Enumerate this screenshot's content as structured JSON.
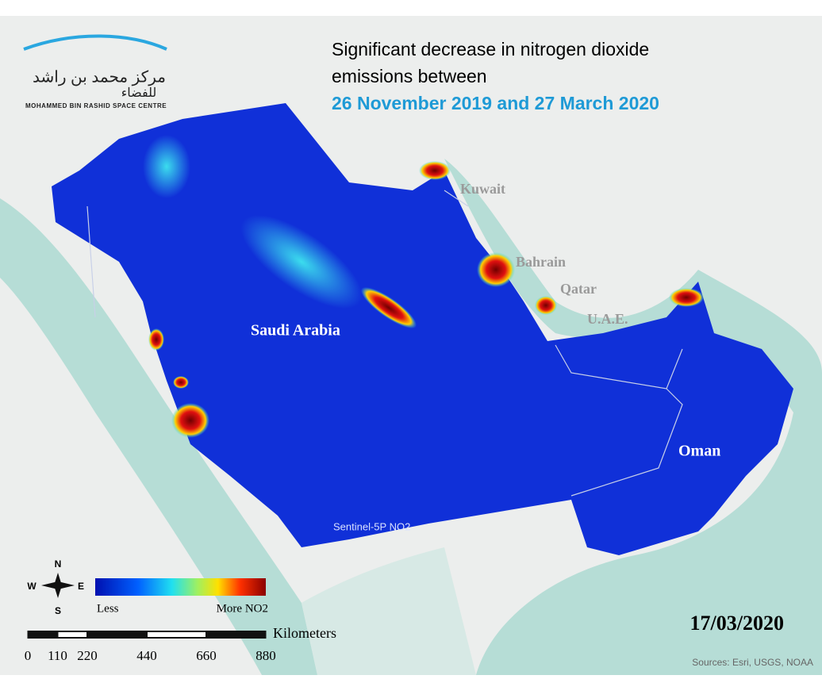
{
  "logo": {
    "arabic_line1": "مركز محمد بن راشد",
    "arabic_line2": "للفضاء",
    "english": "MOHAMMED BIN RASHID SPACE CENTRE"
  },
  "header": {
    "title_line1": "Significant decrease in nitrogen dioxide",
    "title_line2": "emissions between",
    "date_range": "26 November 2019 and 27 March 2020"
  },
  "map": {
    "labels": [
      {
        "text": "Kuwait"
      },
      {
        "text": "Bahrain"
      },
      {
        "text": "Qatar"
      },
      {
        "text": "U.A.E."
      },
      {
        "text": "Saudi Arabia"
      },
      {
        "text": "Oman"
      }
    ],
    "sensor": "Sentinel-5P NO2"
  },
  "compass": {
    "n": "N",
    "e": "E",
    "s": "S",
    "w": "W"
  },
  "legend": {
    "low": "Less",
    "high": "More NO2"
  },
  "scale_bar": {
    "unit": "Kilometers",
    "ticks": [
      0,
      110,
      220,
      440,
      660,
      880
    ]
  },
  "date": "17/03/2020",
  "sources": "Sources: Esri, USGS, NOAA"
}
